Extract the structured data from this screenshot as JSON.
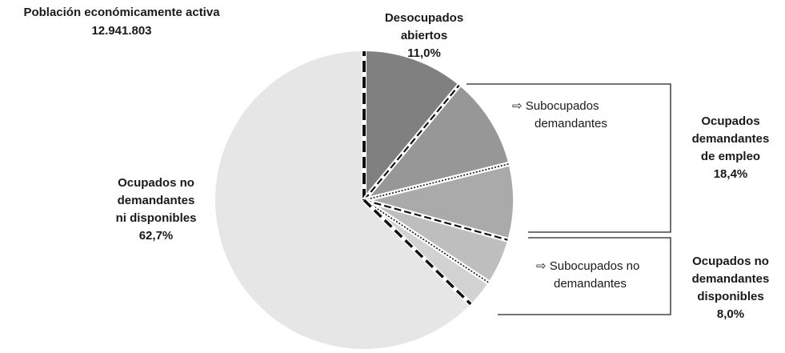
{
  "chart_data": {
    "type": "pie",
    "title": "Población económicamente activa",
    "subtitle": "12.941.803",
    "groups": [
      {
        "lines": [
          "Desocupados",
          "abiertos"
        ],
        "value": 11.0,
        "value_label": "11,0%",
        "color": "#808080"
      },
      {
        "lines": [
          "Ocupados",
          "demandantes",
          "de empleo"
        ],
        "value": 18.4,
        "value_label": "18,4%",
        "parts": [
          {
            "lines": [
              "⇨ Subocupados",
              "demandantes"
            ],
            "value": 10.1,
            "color": "#979797"
          },
          {
            "value": 8.2,
            "color": "#aaaaaa"
          }
        ]
      },
      {
        "lines": [
          "Ocupados no",
          "demandantes",
          "disponibles"
        ],
        "value": 8.0,
        "value_label": "8,0%",
        "parts": [
          {
            "lines": [
              "⇨ Subocupados no",
              "demandantes"
            ],
            "value": 5.0,
            "color": "#bebebe"
          },
          {
            "value": 3.0,
            "color": "#d2d2d2"
          }
        ]
      },
      {
        "lines": [
          "Ocupados no",
          "demandantes",
          "ni disponibles"
        ],
        "value": 62.7,
        "value_label": "62,7%",
        "color": "#e6e6e6"
      }
    ]
  }
}
